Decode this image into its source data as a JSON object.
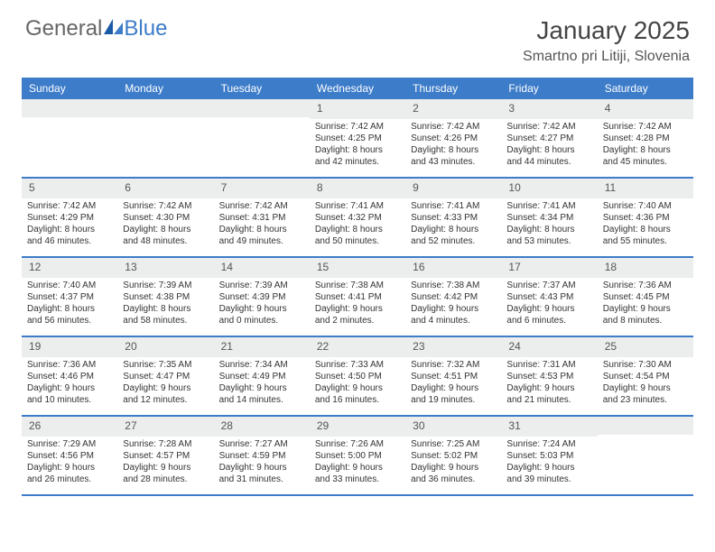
{
  "brand": {
    "part1": "General",
    "part2": "Blue"
  },
  "title": {
    "month": "January 2025",
    "location": "Smartno pri Litiji, Slovenia"
  },
  "colors": {
    "header_bg": "#3d7cc9",
    "daynum_bg": "#eceded",
    "text": "#333333"
  },
  "day_labels": [
    "Sunday",
    "Monday",
    "Tuesday",
    "Wednesday",
    "Thursday",
    "Friday",
    "Saturday"
  ],
  "weeks": [
    [
      {
        "day": "",
        "sunrise": "",
        "sunset": "",
        "daylight1": "",
        "daylight2": ""
      },
      {
        "day": "",
        "sunrise": "",
        "sunset": "",
        "daylight1": "",
        "daylight2": ""
      },
      {
        "day": "",
        "sunrise": "",
        "sunset": "",
        "daylight1": "",
        "daylight2": ""
      },
      {
        "day": "1",
        "sunrise": "Sunrise: 7:42 AM",
        "sunset": "Sunset: 4:25 PM",
        "daylight1": "Daylight: 8 hours",
        "daylight2": "and 42 minutes."
      },
      {
        "day": "2",
        "sunrise": "Sunrise: 7:42 AM",
        "sunset": "Sunset: 4:26 PM",
        "daylight1": "Daylight: 8 hours",
        "daylight2": "and 43 minutes."
      },
      {
        "day": "3",
        "sunrise": "Sunrise: 7:42 AM",
        "sunset": "Sunset: 4:27 PM",
        "daylight1": "Daylight: 8 hours",
        "daylight2": "and 44 minutes."
      },
      {
        "day": "4",
        "sunrise": "Sunrise: 7:42 AM",
        "sunset": "Sunset: 4:28 PM",
        "daylight1": "Daylight: 8 hours",
        "daylight2": "and 45 minutes."
      }
    ],
    [
      {
        "day": "5",
        "sunrise": "Sunrise: 7:42 AM",
        "sunset": "Sunset: 4:29 PM",
        "daylight1": "Daylight: 8 hours",
        "daylight2": "and 46 minutes."
      },
      {
        "day": "6",
        "sunrise": "Sunrise: 7:42 AM",
        "sunset": "Sunset: 4:30 PM",
        "daylight1": "Daylight: 8 hours",
        "daylight2": "and 48 minutes."
      },
      {
        "day": "7",
        "sunrise": "Sunrise: 7:42 AM",
        "sunset": "Sunset: 4:31 PM",
        "daylight1": "Daylight: 8 hours",
        "daylight2": "and 49 minutes."
      },
      {
        "day": "8",
        "sunrise": "Sunrise: 7:41 AM",
        "sunset": "Sunset: 4:32 PM",
        "daylight1": "Daylight: 8 hours",
        "daylight2": "and 50 minutes."
      },
      {
        "day": "9",
        "sunrise": "Sunrise: 7:41 AM",
        "sunset": "Sunset: 4:33 PM",
        "daylight1": "Daylight: 8 hours",
        "daylight2": "and 52 minutes."
      },
      {
        "day": "10",
        "sunrise": "Sunrise: 7:41 AM",
        "sunset": "Sunset: 4:34 PM",
        "daylight1": "Daylight: 8 hours",
        "daylight2": "and 53 minutes."
      },
      {
        "day": "11",
        "sunrise": "Sunrise: 7:40 AM",
        "sunset": "Sunset: 4:36 PM",
        "daylight1": "Daylight: 8 hours",
        "daylight2": "and 55 minutes."
      }
    ],
    [
      {
        "day": "12",
        "sunrise": "Sunrise: 7:40 AM",
        "sunset": "Sunset: 4:37 PM",
        "daylight1": "Daylight: 8 hours",
        "daylight2": "and 56 minutes."
      },
      {
        "day": "13",
        "sunrise": "Sunrise: 7:39 AM",
        "sunset": "Sunset: 4:38 PM",
        "daylight1": "Daylight: 8 hours",
        "daylight2": "and 58 minutes."
      },
      {
        "day": "14",
        "sunrise": "Sunrise: 7:39 AM",
        "sunset": "Sunset: 4:39 PM",
        "daylight1": "Daylight: 9 hours",
        "daylight2": "and 0 minutes."
      },
      {
        "day": "15",
        "sunrise": "Sunrise: 7:38 AM",
        "sunset": "Sunset: 4:41 PM",
        "daylight1": "Daylight: 9 hours",
        "daylight2": "and 2 minutes."
      },
      {
        "day": "16",
        "sunrise": "Sunrise: 7:38 AM",
        "sunset": "Sunset: 4:42 PM",
        "daylight1": "Daylight: 9 hours",
        "daylight2": "and 4 minutes."
      },
      {
        "day": "17",
        "sunrise": "Sunrise: 7:37 AM",
        "sunset": "Sunset: 4:43 PM",
        "daylight1": "Daylight: 9 hours",
        "daylight2": "and 6 minutes."
      },
      {
        "day": "18",
        "sunrise": "Sunrise: 7:36 AM",
        "sunset": "Sunset: 4:45 PM",
        "daylight1": "Daylight: 9 hours",
        "daylight2": "and 8 minutes."
      }
    ],
    [
      {
        "day": "19",
        "sunrise": "Sunrise: 7:36 AM",
        "sunset": "Sunset: 4:46 PM",
        "daylight1": "Daylight: 9 hours",
        "daylight2": "and 10 minutes."
      },
      {
        "day": "20",
        "sunrise": "Sunrise: 7:35 AM",
        "sunset": "Sunset: 4:47 PM",
        "daylight1": "Daylight: 9 hours",
        "daylight2": "and 12 minutes."
      },
      {
        "day": "21",
        "sunrise": "Sunrise: 7:34 AM",
        "sunset": "Sunset: 4:49 PM",
        "daylight1": "Daylight: 9 hours",
        "daylight2": "and 14 minutes."
      },
      {
        "day": "22",
        "sunrise": "Sunrise: 7:33 AM",
        "sunset": "Sunset: 4:50 PM",
        "daylight1": "Daylight: 9 hours",
        "daylight2": "and 16 minutes."
      },
      {
        "day": "23",
        "sunrise": "Sunrise: 7:32 AM",
        "sunset": "Sunset: 4:51 PM",
        "daylight1": "Daylight: 9 hours",
        "daylight2": "and 19 minutes."
      },
      {
        "day": "24",
        "sunrise": "Sunrise: 7:31 AM",
        "sunset": "Sunset: 4:53 PM",
        "daylight1": "Daylight: 9 hours",
        "daylight2": "and 21 minutes."
      },
      {
        "day": "25",
        "sunrise": "Sunrise: 7:30 AM",
        "sunset": "Sunset: 4:54 PM",
        "daylight1": "Daylight: 9 hours",
        "daylight2": "and 23 minutes."
      }
    ],
    [
      {
        "day": "26",
        "sunrise": "Sunrise: 7:29 AM",
        "sunset": "Sunset: 4:56 PM",
        "daylight1": "Daylight: 9 hours",
        "daylight2": "and 26 minutes."
      },
      {
        "day": "27",
        "sunrise": "Sunrise: 7:28 AM",
        "sunset": "Sunset: 4:57 PM",
        "daylight1": "Daylight: 9 hours",
        "daylight2": "and 28 minutes."
      },
      {
        "day": "28",
        "sunrise": "Sunrise: 7:27 AM",
        "sunset": "Sunset: 4:59 PM",
        "daylight1": "Daylight: 9 hours",
        "daylight2": "and 31 minutes."
      },
      {
        "day": "29",
        "sunrise": "Sunrise: 7:26 AM",
        "sunset": "Sunset: 5:00 PM",
        "daylight1": "Daylight: 9 hours",
        "daylight2": "and 33 minutes."
      },
      {
        "day": "30",
        "sunrise": "Sunrise: 7:25 AM",
        "sunset": "Sunset: 5:02 PM",
        "daylight1": "Daylight: 9 hours",
        "daylight2": "and 36 minutes."
      },
      {
        "day": "31",
        "sunrise": "Sunrise: 7:24 AM",
        "sunset": "Sunset: 5:03 PM",
        "daylight1": "Daylight: 9 hours",
        "daylight2": "and 39 minutes."
      },
      {
        "day": "",
        "sunrise": "",
        "sunset": "",
        "daylight1": "",
        "daylight2": ""
      }
    ]
  ]
}
